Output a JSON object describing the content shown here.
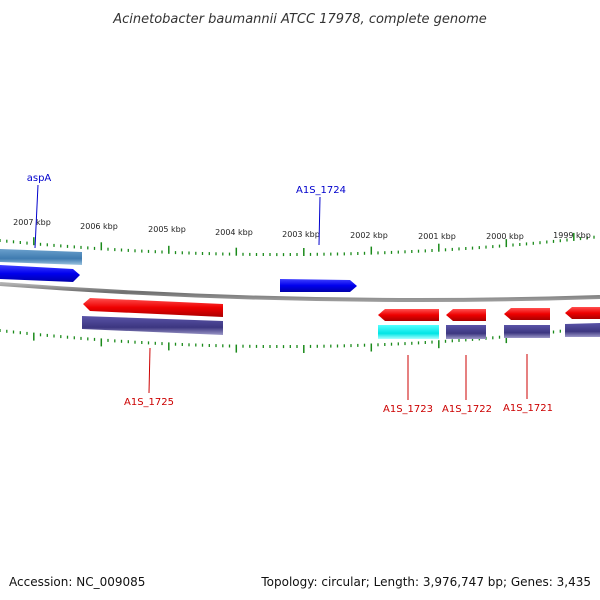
{
  "title": "Acinetobacter baumannii ATCC 17978, complete genome",
  "footer": {
    "accession": "Accession: NC_009085",
    "summary": "Topology: circular; Length: 3,976,747 bp; Genes: 3,435"
  },
  "colors": {
    "backbone": "#808080",
    "tick": "#1a8a1a",
    "forward_label": "#0000cc",
    "reverse_label": "#cc0000",
    "forward_gene": "#0000ee",
    "reverse_gene": "#ee0000",
    "cds_track": "#3c3680",
    "light_cds": "#3f7bb0",
    "cyan_cds": "#00e5e5"
  },
  "scale_ticks": [
    {
      "label": "2007 kbp"
    },
    {
      "label": "2006 kbp"
    },
    {
      "label": "2005 kbp"
    },
    {
      "label": "2004 kbp"
    },
    {
      "label": "2003 kbp"
    },
    {
      "label": "2002 kbp"
    },
    {
      "label": "2001 kbp"
    },
    {
      "label": "2000 kbp"
    },
    {
      "label": "1999 kbp"
    }
  ],
  "genes": [
    {
      "name": "aspA",
      "strand": "forward"
    },
    {
      "name": "A1S_1724",
      "strand": "forward"
    },
    {
      "name": "A1S_1725",
      "strand": "reverse"
    },
    {
      "name": "A1S_1723",
      "strand": "reverse"
    },
    {
      "name": "A1S_1722",
      "strand": "reverse"
    },
    {
      "name": "A1S_1721",
      "strand": "reverse"
    }
  ]
}
